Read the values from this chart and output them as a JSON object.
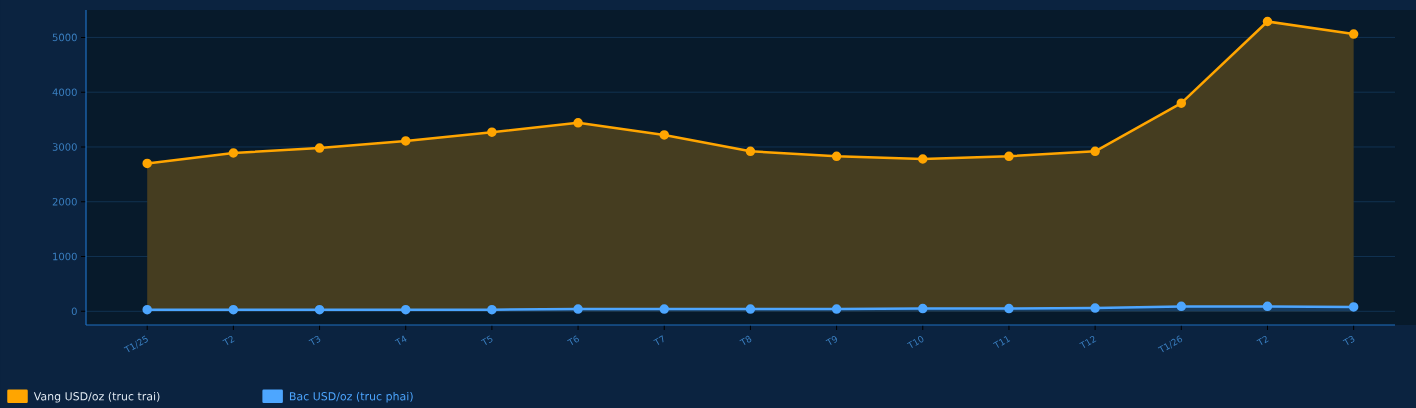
{
  "chart_data": {
    "type": "area",
    "categories": [
      "T1/25",
      "T2",
      "T3",
      "T4",
      "T5",
      "T6",
      "T7",
      "T8",
      "T9",
      "T10",
      "T11",
      "T12",
      "T1/26",
      "T2",
      "T3"
    ],
    "series": [
      {
        "name": "Vang USD/oz (truc trai)",
        "color": "#ffa500",
        "values": [
          2700,
          2890,
          2980,
          3110,
          3270,
          3440,
          3220,
          2920,
          2830,
          2780,
          2830,
          2920,
          3800,
          5290,
          5060
        ]
      },
      {
        "name": "Bac USD/oz (truc phai)",
        "color": "#4da6ff",
        "values": [
          30,
          30,
          30,
          30,
          30,
          40,
          40,
          40,
          40,
          50,
          50,
          60,
          90,
          90,
          80
        ]
      }
    ],
    "ylim": [
      -250,
      5500
    ],
    "yticks": [
      0,
      1000,
      2000,
      3000,
      4000,
      5000
    ],
    "grid": "y",
    "legend": "bottom left",
    "marker": "circle",
    "line_style": "solid"
  }
}
